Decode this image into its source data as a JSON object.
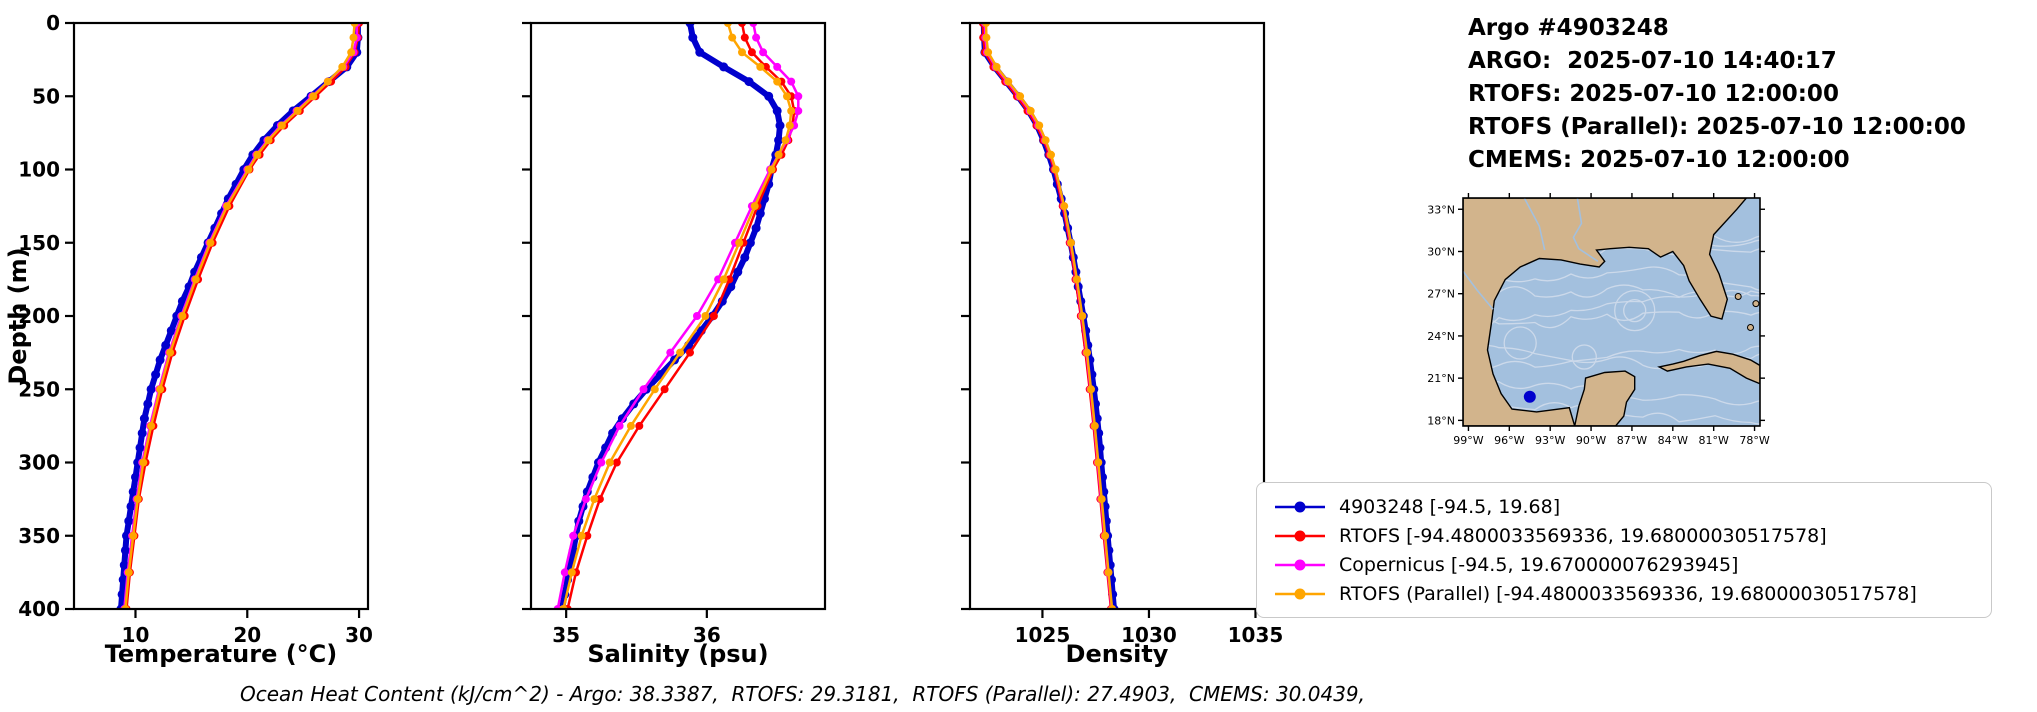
{
  "header": {
    "lines": [
      "Argo #4903248",
      "ARGO:  2025-07-10 14:40:17",
      "RTOFS: 2025-07-10 12:00:00",
      "RTOFS (Parallel): 2025-07-10 12:00:00",
      "CMEMS: 2025-07-10 12:00:00"
    ]
  },
  "footer": {
    "text": "Ocean Heat Content (kJ/cm^2) - Argo: 38.3387,  RTOFS: 29.3181,  RTOFS (Parallel): 27.4903,  CMEMS: 30.0439,"
  },
  "legend": {
    "items": [
      {
        "label": "4903248 [-94.5, 19.68]",
        "color": "#0000cd"
      },
      {
        "label": "RTOFS [-94.4800033569336, 19.68000030517578]",
        "color": "#ff0000"
      },
      {
        "label": "Copernicus [-94.5, 19.670000076293945]",
        "color": "#ff00ff"
      },
      {
        "label": "RTOFS (Parallel) [-94.4800033569336, 19.68000030517578]",
        "color": "#ffa500"
      }
    ]
  },
  "map": {
    "extent": {
      "lon_min": -99.4,
      "lon_max": -77.6,
      "lat_min": 17.6,
      "lat_max": 33.8
    },
    "lat_ticks": [
      {
        "value": 33,
        "label": "33°N"
      },
      {
        "value": 30,
        "label": "30°N"
      },
      {
        "value": 27,
        "label": "27°N"
      },
      {
        "value": 24,
        "label": "24°N"
      },
      {
        "value": 21,
        "label": "21°N"
      },
      {
        "value": 18,
        "label": "18°N"
      }
    ],
    "lon_ticks": [
      {
        "value": -99,
        "label": "99°W"
      },
      {
        "value": -96,
        "label": "96°W"
      },
      {
        "value": -93,
        "label": "93°W"
      },
      {
        "value": -90,
        "label": "90°W"
      },
      {
        "value": -87,
        "label": "87°W"
      },
      {
        "value": -84,
        "label": "84°W"
      },
      {
        "value": -81,
        "label": "81°W"
      },
      {
        "value": -78,
        "label": "78°W"
      }
    ],
    "marker": {
      "lon": -94.5,
      "lat": 19.68,
      "color": "#0000cd"
    },
    "colors": {
      "land": "#d2b48c",
      "water": "#a3c0de",
      "coast": "#000000",
      "streamline": "#ccd9ea"
    }
  },
  "depth_levels": {
    "argo": [
      0,
      10,
      20,
      30,
      40,
      50,
      60,
      70,
      80,
      90,
      100,
      110,
      120,
      130,
      140,
      150,
      160,
      170,
      180,
      190,
      200,
      210,
      220,
      230,
      240,
      250,
      260,
      270,
      280,
      290,
      300,
      310,
      320,
      330,
      340,
      350,
      360,
      370,
      380,
      390,
      400
    ],
    "model": [
      0,
      10,
      20,
      30,
      40,
      50,
      60,
      70,
      80,
      90,
      100,
      125,
      150,
      175,
      200,
      225,
      250,
      275,
      300,
      325,
      350,
      375,
      400
    ]
  },
  "chart_data": [
    {
      "type": "line",
      "id": "temperature",
      "xlabel": "Temperature (°C)",
      "ylabel": "Depth (m)",
      "xlim": [
        4.5,
        30.8
      ],
      "ylim": [
        0,
        400
      ],
      "xticks": [
        10,
        20,
        30
      ],
      "yticks": [
        0,
        50,
        100,
        150,
        200,
        250,
        300,
        350,
        400
      ],
      "show_ytick_labels": true,
      "series": [
        {
          "name": "4903248",
          "color": "#0000cd",
          "linewidth": 6,
          "markersize": 4.5,
          "depths": "argo",
          "values": [
            29.9,
            29.9,
            29.8,
            28.9,
            27.3,
            25.7,
            24.1,
            22.7,
            21.5,
            20.5,
            19.7,
            19.0,
            18.3,
            17.7,
            17.1,
            16.5,
            15.9,
            15.3,
            14.8,
            14.2,
            13.7,
            13.2,
            12.7,
            12.2,
            11.8,
            11.4,
            11.1,
            10.8,
            10.6,
            10.4,
            10.2,
            10.0,
            9.8,
            9.6,
            9.4,
            9.2,
            9.1,
            9.0,
            8.9,
            8.8,
            8.7
          ]
        },
        {
          "name": "RTOFS",
          "color": "#ff0000",
          "linewidth": 2.5,
          "markersize": 4,
          "depths": "model",
          "values": [
            30.0,
            29.9,
            29.6,
            28.8,
            27.5,
            26.1,
            24.7,
            23.3,
            22.1,
            21.1,
            20.2,
            18.4,
            16.9,
            15.6,
            14.4,
            13.3,
            12.4,
            11.6,
            10.9,
            10.3,
            9.9,
            9.5,
            9.2
          ]
        },
        {
          "name": "Copernicus",
          "color": "#ff00ff",
          "linewidth": 2.5,
          "markersize": 4,
          "depths": "model",
          "values": [
            29.8,
            29.8,
            29.5,
            28.6,
            27.2,
            25.8,
            24.4,
            23.0,
            21.8,
            20.8,
            20.0,
            18.1,
            16.6,
            15.3,
            14.1,
            13.0,
            12.1,
            11.3,
            10.6,
            10.1,
            9.7,
            9.3,
            9.0
          ]
        },
        {
          "name": "RTOFS (Parallel)",
          "color": "#ffa500",
          "linewidth": 2.5,
          "markersize": 4,
          "depths": "model",
          "values": [
            29.6,
            29.5,
            29.3,
            28.5,
            27.2,
            25.9,
            24.5,
            23.1,
            21.9,
            20.9,
            20.1,
            18.2,
            16.7,
            15.4,
            14.2,
            13.1,
            12.2,
            11.4,
            10.7,
            10.2,
            9.8,
            9.4,
            9.1
          ]
        }
      ]
    },
    {
      "type": "line",
      "id": "salinity",
      "xlabel": "Salinity (psu)",
      "ylabel": "",
      "xlim": [
        34.75,
        36.84
      ],
      "ylim": [
        0,
        400
      ],
      "xticks": [
        35,
        36
      ],
      "yticks": [
        0,
        50,
        100,
        150,
        200,
        250,
        300,
        350,
        400
      ],
      "show_ytick_labels": false,
      "series": [
        {
          "name": "4903248",
          "color": "#0000cd",
          "linewidth": 6,
          "markersize": 4.5,
          "depths": "argo",
          "values": [
            35.88,
            35.9,
            35.95,
            36.12,
            36.3,
            36.44,
            36.5,
            36.52,
            36.51,
            36.49,
            36.46,
            36.44,
            36.41,
            36.38,
            36.35,
            36.31,
            36.27,
            36.22,
            36.17,
            36.11,
            36.04,
            35.96,
            35.87,
            35.77,
            35.67,
            35.57,
            35.48,
            35.4,
            35.33,
            35.28,
            35.23,
            35.19,
            35.15,
            35.12,
            35.09,
            35.07,
            35.05,
            35.03,
            35.01,
            34.99,
            34.97
          ]
        },
        {
          "name": "RTOFS",
          "color": "#ff0000",
          "linewidth": 2.5,
          "markersize": 4,
          "depths": "model",
          "values": [
            36.25,
            36.27,
            36.32,
            36.42,
            36.53,
            36.6,
            36.62,
            36.61,
            36.58,
            36.53,
            36.47,
            36.36,
            36.26,
            36.16,
            36.05,
            35.88,
            35.7,
            35.52,
            35.36,
            35.24,
            35.15,
            35.07,
            35.01
          ]
        },
        {
          "name": "Copernicus",
          "color": "#ff00ff",
          "linewidth": 2.5,
          "markersize": 4,
          "depths": "model",
          "values": [
            36.33,
            36.35,
            36.4,
            36.5,
            36.6,
            36.65,
            36.65,
            36.62,
            36.57,
            36.51,
            36.45,
            36.32,
            36.2,
            36.08,
            35.93,
            35.74,
            35.55,
            35.38,
            35.25,
            35.14,
            35.05,
            34.99,
            34.94
          ]
        },
        {
          "name": "RTOFS (Parallel)",
          "color": "#ffa500",
          "linewidth": 2.5,
          "markersize": 4,
          "depths": "model",
          "values": [
            36.15,
            36.18,
            36.25,
            36.38,
            36.5,
            36.57,
            36.6,
            36.59,
            36.56,
            36.51,
            36.46,
            36.34,
            36.23,
            36.12,
            35.99,
            35.81,
            35.63,
            35.46,
            35.31,
            35.2,
            35.11,
            35.04,
            34.98
          ]
        }
      ]
    },
    {
      "type": "line",
      "id": "density",
      "xlabel": "Density",
      "ylabel": "",
      "xlim": [
        1021.6,
        1035.4
      ],
      "ylim": [
        0,
        400
      ],
      "xticks": [
        1025,
        1030,
        1035
      ],
      "yticks": [
        0,
        50,
        100,
        150,
        200,
        250,
        300,
        350,
        400
      ],
      "show_ytick_labels": false,
      "series": [
        {
          "name": "4903248",
          "color": "#0000cd",
          "linewidth": 6,
          "markersize": 4.5,
          "depths": "argo",
          "values": [
            1022.25,
            1022.26,
            1022.3,
            1022.75,
            1023.3,
            1023.85,
            1024.35,
            1024.75,
            1025.05,
            1025.3,
            1025.52,
            1025.7,
            1025.88,
            1026.04,
            1026.18,
            1026.32,
            1026.45,
            1026.57,
            1026.68,
            1026.8,
            1026.92,
            1027.03,
            1027.13,
            1027.23,
            1027.32,
            1027.41,
            1027.49,
            1027.57,
            1027.64,
            1027.7,
            1027.76,
            1027.82,
            1027.88,
            1027.94,
            1028.0,
            1028.06,
            1028.12,
            1028.18,
            1028.24,
            1028.3,
            1028.36
          ]
        },
        {
          "name": "RTOFS",
          "color": "#ff0000",
          "linewidth": 2.5,
          "markersize": 4,
          "depths": "model",
          "values": [
            1022.2,
            1022.22,
            1022.3,
            1022.7,
            1023.25,
            1023.8,
            1024.3,
            1024.72,
            1025.05,
            1025.32,
            1025.55,
            1025.95,
            1026.28,
            1026.55,
            1026.8,
            1027.02,
            1027.22,
            1027.4,
            1027.56,
            1027.72,
            1027.88,
            1028.05,
            1028.22
          ]
        },
        {
          "name": "Copernicus",
          "color": "#ff00ff",
          "linewidth": 2.5,
          "markersize": 4,
          "depths": "model",
          "values": [
            1022.3,
            1022.32,
            1022.4,
            1022.8,
            1023.35,
            1023.9,
            1024.4,
            1024.8,
            1025.12,
            1025.38,
            1025.6,
            1026.0,
            1026.32,
            1026.6,
            1026.85,
            1027.07,
            1027.26,
            1027.44,
            1027.6,
            1027.76,
            1027.92,
            1028.08,
            1028.25
          ]
        },
        {
          "name": "RTOFS (Parallel)",
          "color": "#ffa500",
          "linewidth": 2.5,
          "markersize": 4,
          "depths": "model",
          "values": [
            1022.35,
            1022.37,
            1022.45,
            1022.85,
            1023.4,
            1023.95,
            1024.45,
            1024.85,
            1025.15,
            1025.4,
            1025.62,
            1026.02,
            1026.34,
            1026.62,
            1026.87,
            1027.09,
            1027.28,
            1027.46,
            1027.62,
            1027.78,
            1027.94,
            1028.1,
            1028.27
          ]
        }
      ]
    }
  ]
}
